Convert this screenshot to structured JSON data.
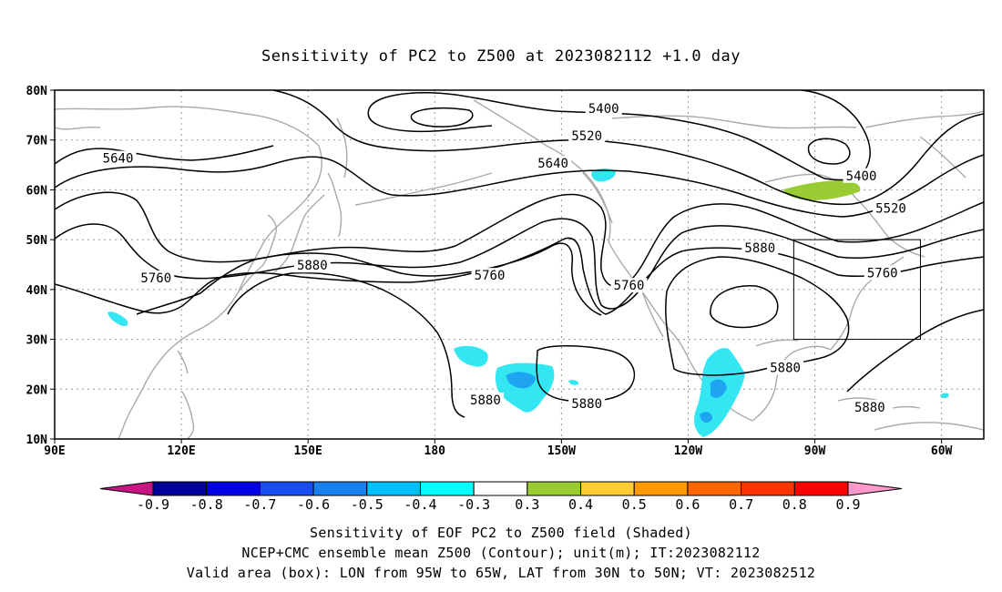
{
  "title": "Sensitivity of PC2 to Z500 at 2023082112 +1.0 day",
  "map": {
    "lon_range": [
      "90E",
      "50W"
    ],
    "lat_range": [
      10,
      80
    ],
    "lat_ticks": [
      {
        "lat": 80,
        "label": "80N"
      },
      {
        "lat": 70,
        "label": "70N"
      },
      {
        "lat": 60,
        "label": "60N"
      },
      {
        "lat": 50,
        "label": "50N"
      },
      {
        "lat": 40,
        "label": "40N"
      },
      {
        "lat": 30,
        "label": "30N"
      },
      {
        "lat": 20,
        "label": "20N"
      },
      {
        "lat": 10,
        "label": "10N"
      }
    ],
    "lon_ticks": [
      {
        "lon": 90,
        "label": "90E"
      },
      {
        "lon": 120,
        "label": "120E"
      },
      {
        "lon": 150,
        "label": "150E"
      },
      {
        "lon": 180,
        "label": "180"
      },
      {
        "lon": 210,
        "label": "150W"
      },
      {
        "lon": 240,
        "label": "120W"
      },
      {
        "lon": 270,
        "label": "90W"
      },
      {
        "lon": 300,
        "label": "60W"
      }
    ],
    "contour_labels": [
      {
        "text": "5400",
        "lon": 220,
        "lat": 76
      },
      {
        "text": "5520",
        "lon": 216,
        "lat": 70.5
      },
      {
        "text": "5640",
        "lon": 208,
        "lat": 65
      },
      {
        "text": "5640",
        "lon": 105,
        "lat": 66
      },
      {
        "text": "5400",
        "lon": 281,
        "lat": 62.5
      },
      {
        "text": "5520",
        "lon": 288,
        "lat": 56
      },
      {
        "text": "5760",
        "lon": 114,
        "lat": 42
      },
      {
        "text": "5880",
        "lon": 151,
        "lat": 44.5
      },
      {
        "text": "5760",
        "lon": 193,
        "lat": 42.5
      },
      {
        "text": "5760",
        "lon": 226,
        "lat": 40.5
      },
      {
        "text": "5880",
        "lon": 257,
        "lat": 48
      },
      {
        "text": "5760",
        "lon": 286,
        "lat": 43
      },
      {
        "text": "5880",
        "lon": 192,
        "lat": 17.5
      },
      {
        "text": "5880",
        "lon": 216,
        "lat": 16.8
      },
      {
        "text": "5880",
        "lon": 263,
        "lat": 24
      },
      {
        "text": "5880",
        "lon": 283,
        "lat": 16
      }
    ],
    "valid_box": {
      "lon_west": 265,
      "lon_east": 295,
      "lat_south": 30,
      "lat_north": 50
    }
  },
  "colorbar": {
    "labels": [
      "-0.9",
      "-0.8",
      "-0.7",
      "-0.6",
      "-0.5",
      "-0.4",
      "-0.3",
      "0.3",
      "0.4",
      "0.5",
      "0.6",
      "0.7",
      "0.8",
      "0.9"
    ],
    "colors": [
      "#c71585",
      "#000099",
      "#0000e6",
      "#1a4df0",
      "#1a80f0",
      "#00bfff",
      "#00ffff",
      "#ffffff",
      "#99cc33",
      "#ffcc33",
      "#ff9900",
      "#ff6600",
      "#ff3300",
      "#ff0000",
      "#ff99cc"
    ]
  },
  "footer": {
    "line1": "Sensitivity of EOF PC2 to Z500 field (Shaded)",
    "line2": "NCEP+CMC ensemble mean Z500 (Contour); unit(m); IT:2023082112",
    "line3": "Valid area (box): LON from 95W to 65W, LAT from 30N to 50N; VT: 2023082512"
  }
}
